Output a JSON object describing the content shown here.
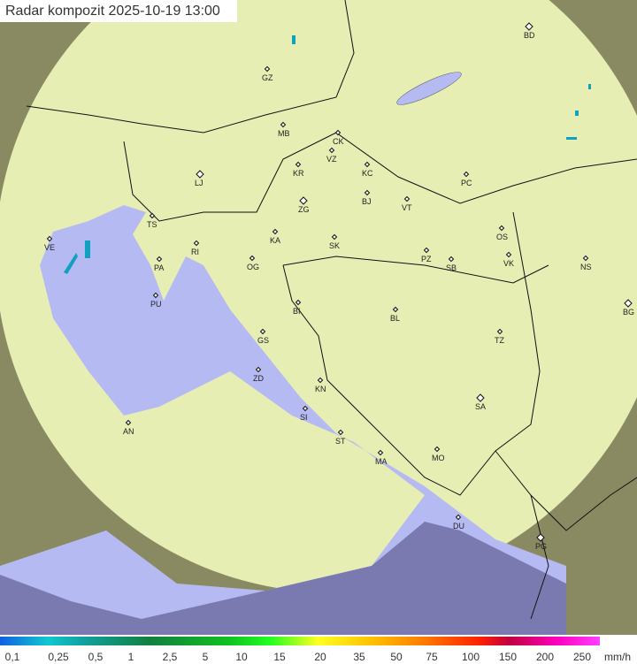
{
  "title": "Radar kompozit  2025-10-19   13:00",
  "legend": {
    "unit": "mm/h",
    "labels": [
      "0,1",
      "0,25",
      "0,5",
      "1",
      "2,5",
      "5",
      "10",
      "15",
      "20",
      "35",
      "50",
      "75",
      "100",
      "150",
      "200",
      "250"
    ]
  },
  "colors": {
    "sea": "#b4b8f0",
    "coverage": "#e8f0b0",
    "outside": "#8a8a60"
  },
  "cities": [
    {
      "code": "BD",
      "big": true
    },
    {
      "code": "GZ"
    },
    {
      "code": "MB"
    },
    {
      "code": "CK"
    },
    {
      "code": "VZ"
    },
    {
      "code": "KR"
    },
    {
      "code": "KC"
    },
    {
      "code": "LJ",
      "big": true
    },
    {
      "code": "PC"
    },
    {
      "code": "BJ"
    },
    {
      "code": "ZG",
      "big": true
    },
    {
      "code": "VT"
    },
    {
      "code": "TS"
    },
    {
      "code": "VE"
    },
    {
      "code": "KA"
    },
    {
      "code": "SK"
    },
    {
      "code": "RI"
    },
    {
      "code": "OS"
    },
    {
      "code": "PA"
    },
    {
      "code": "OG"
    },
    {
      "code": "PZ"
    },
    {
      "code": "SB"
    },
    {
      "code": "VK"
    },
    {
      "code": "NS"
    },
    {
      "code": "PU"
    },
    {
      "code": "BI"
    },
    {
      "code": "BL"
    },
    {
      "code": "BG",
      "big": true
    },
    {
      "code": "GS"
    },
    {
      "code": "TZ"
    },
    {
      "code": "ZD"
    },
    {
      "code": "KN"
    },
    {
      "code": "SA",
      "big": true
    },
    {
      "code": "SI"
    },
    {
      "code": "AN"
    },
    {
      "code": "ST"
    },
    {
      "code": "MA"
    },
    {
      "code": "MO"
    },
    {
      "code": "DU"
    },
    {
      "code": "PG",
      "big": true
    }
  ]
}
